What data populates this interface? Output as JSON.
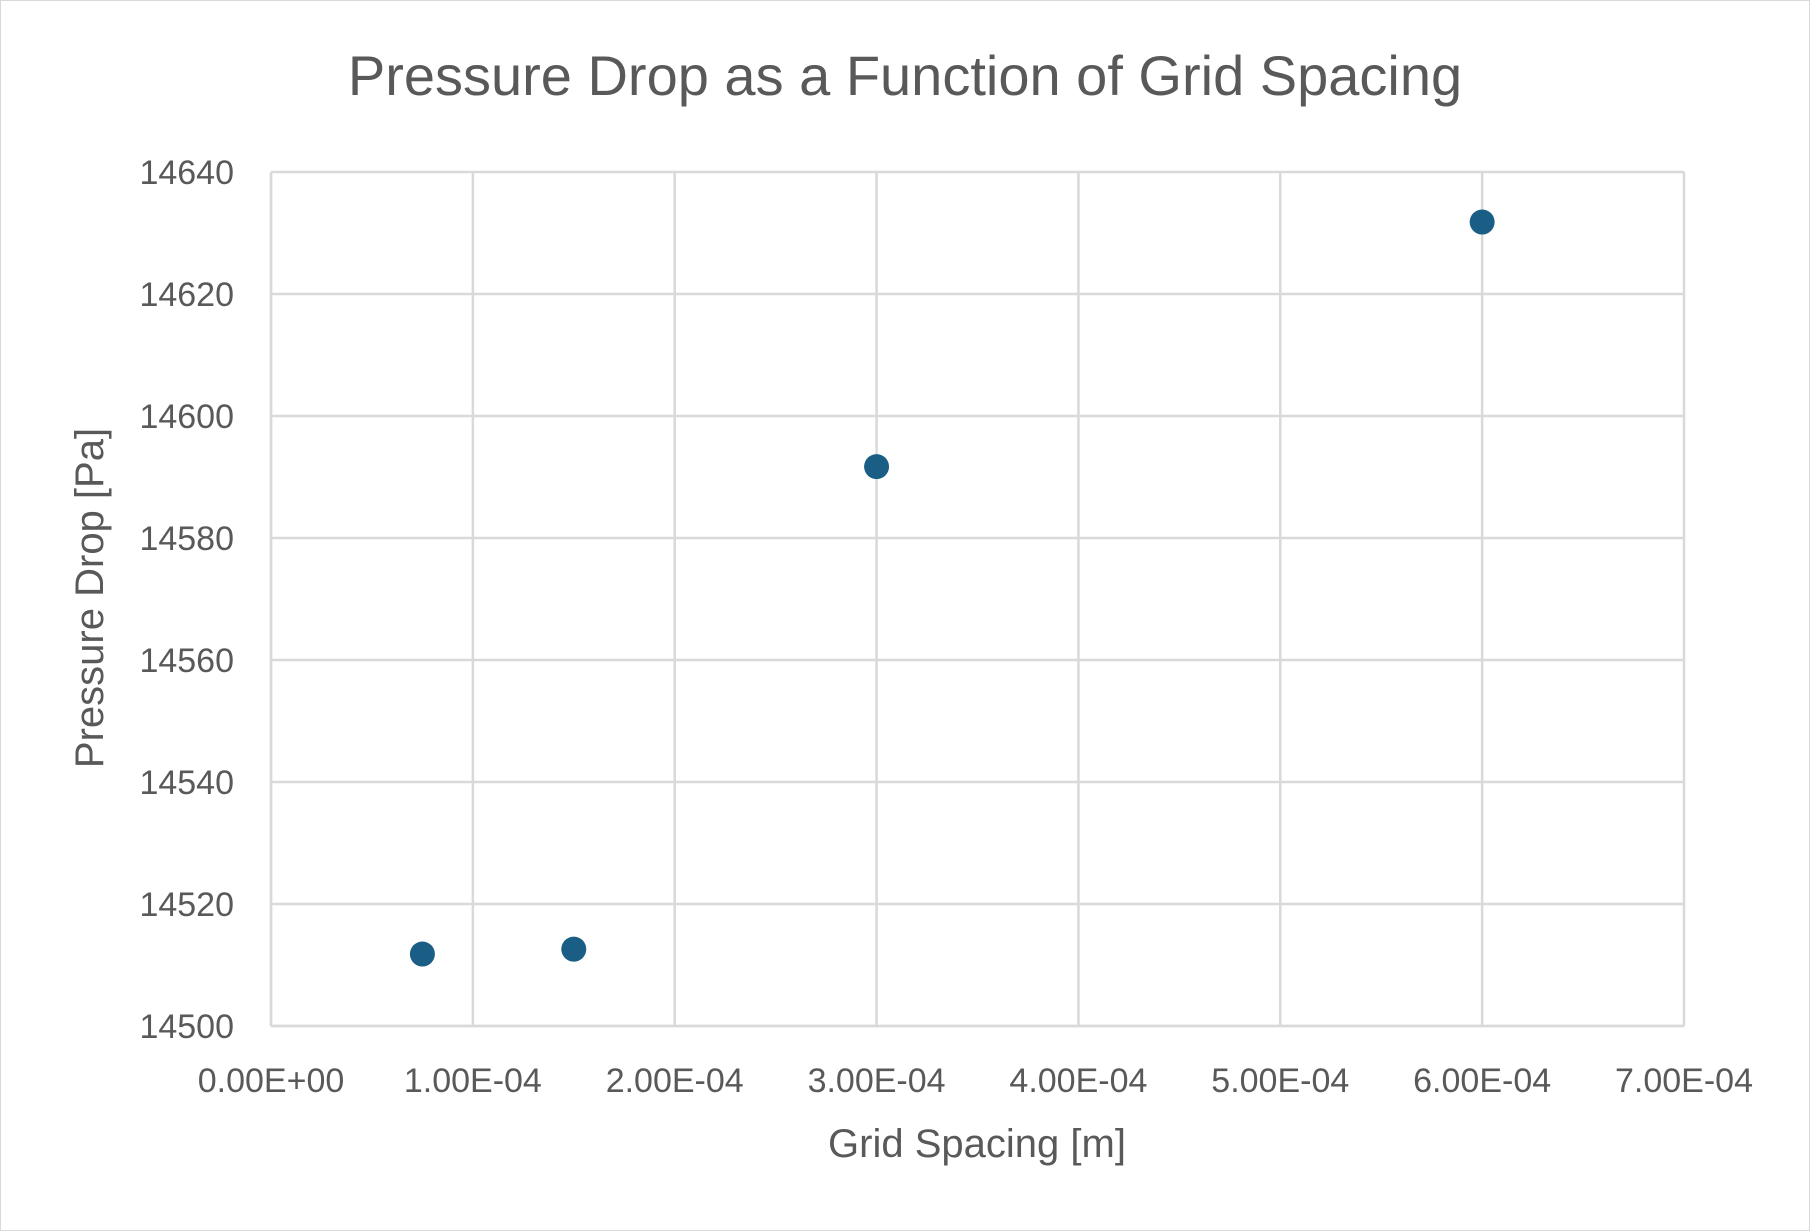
{
  "chart_data": {
    "type": "scatter",
    "title": "Pressure Drop as a Function of Grid Spacing",
    "xlabel": "Grid Spacing [m]",
    "ylabel": "Pressure Drop [Pa]",
    "xlim": [
      0,
      0.0007
    ],
    "ylim": [
      14500,
      14640
    ],
    "x_ticks": [
      0,
      0.0001,
      0.0002,
      0.0003,
      0.0004,
      0.0005,
      0.0006,
      0.0007
    ],
    "x_tick_labels": [
      "0.00E+00",
      "1.00E-04",
      "2.00E-04",
      "3.00E-04",
      "4.00E-04",
      "5.00E-04",
      "6.00E-04",
      "7.00E-04"
    ],
    "y_ticks": [
      14500,
      14520,
      14540,
      14560,
      14580,
      14600,
      14620,
      14640
    ],
    "y_tick_labels": [
      "14500",
      "14520",
      "14540",
      "14560",
      "14580",
      "14600",
      "14620",
      "14640"
    ],
    "grid": true,
    "legend": "none",
    "series": [
      {
        "color": "#1b5e85",
        "points": [
          {
            "x": 7.5e-05,
            "y": 14511.8
          },
          {
            "x": 0.00015,
            "y": 14512.6
          },
          {
            "x": 0.0003,
            "y": 14591.7
          },
          {
            "x": 0.0006,
            "y": 14631.8
          }
        ]
      }
    ]
  }
}
